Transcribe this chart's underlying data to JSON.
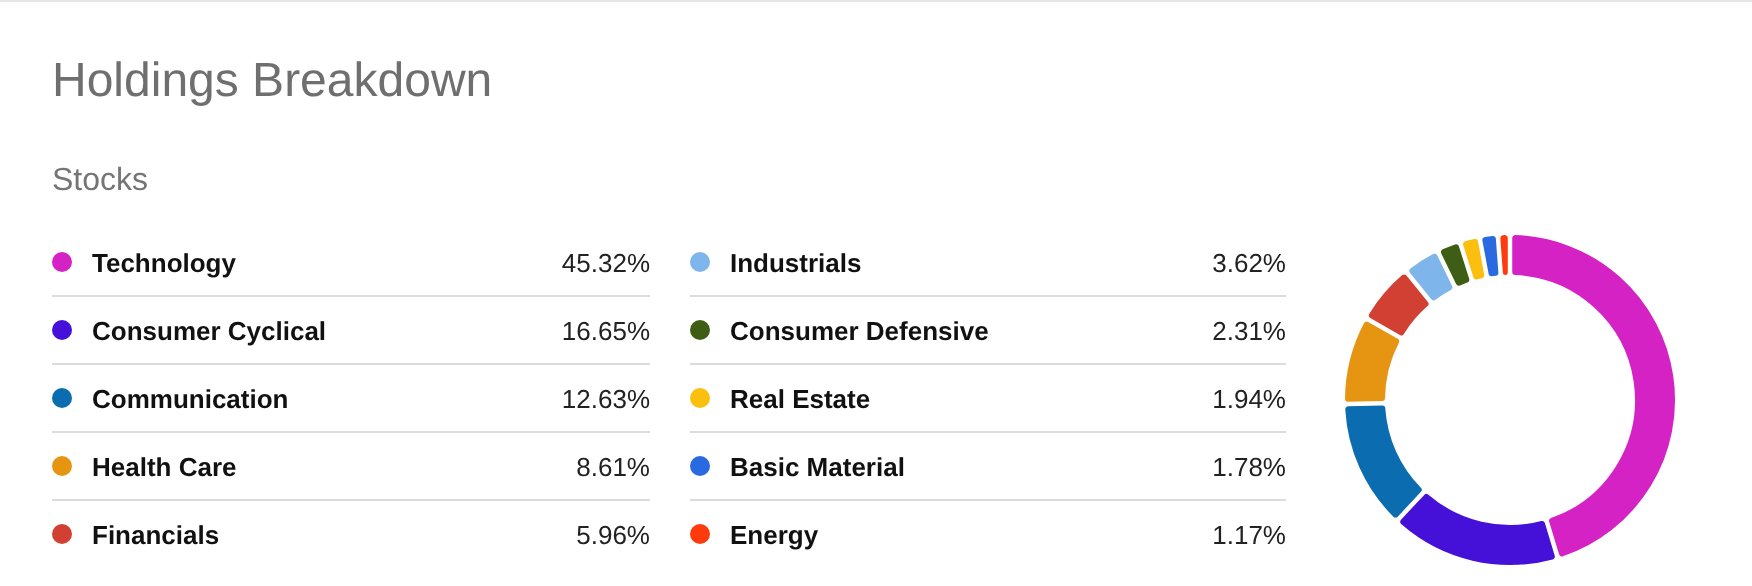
{
  "chart_data": {
    "type": "donut",
    "title": "Holdings Breakdown",
    "subtitle": "Stocks",
    "legend": "left",
    "categories": [
      "Technology",
      "Consumer Cyclical",
      "Communication",
      "Health Care",
      "Financials",
      "Industrials",
      "Consumer Defensive",
      "Real Estate",
      "Basic Material",
      "Energy"
    ],
    "values": [
      45.32,
      16.65,
      12.63,
      8.61,
      5.96,
      3.62,
      2.31,
      1.94,
      1.78,
      1.17
    ],
    "value_labels": [
      "45.32%",
      "16.65%",
      "12.63%",
      "8.61%",
      "5.96%",
      "3.62%",
      "2.31%",
      "1.94%",
      "1.78%",
      "1.17%"
    ],
    "colors": [
      "#d422c4",
      "#4510d8",
      "#0b6db0",
      "#e69512",
      "#d23f33",
      "#7eb5ea",
      "#3e5e16",
      "#fbbf10",
      "#2a6ae0",
      "#ff3a0c"
    ]
  }
}
